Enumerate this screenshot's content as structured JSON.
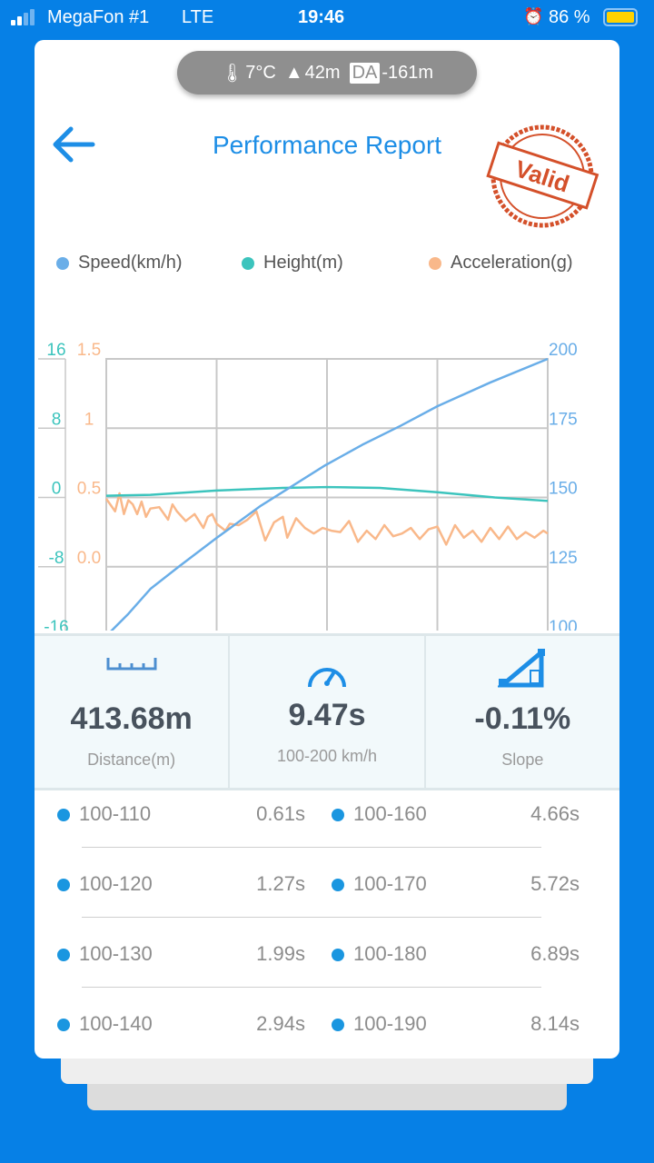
{
  "status_bar": {
    "carrier": "MegaFon #1",
    "network": "LTE",
    "time": "19:46",
    "battery": "86 %"
  },
  "conditions": {
    "temperature": "7°C",
    "altitude": "42m",
    "da_label": "DA",
    "density_altitude": "-161m"
  },
  "header": {
    "title": "Performance Report",
    "stamp": "Valid"
  },
  "colors": {
    "speed": "#6aaee8",
    "height": "#3cc4bd",
    "acceleration": "#f9b88a",
    "accent": "#1d8ee6"
  },
  "chart_data": {
    "type": "line",
    "legend": [
      "Speed(km/h)",
      "Height(m)",
      "Acceleration(g)"
    ],
    "axes": {
      "height": {
        "ticks": [
          "16",
          "8",
          "0",
          "-8",
          "-16"
        ],
        "range": [
          -16,
          16
        ]
      },
      "acceleration": {
        "ticks": [
          "1.5",
          "1",
          "0.5",
          "0.0"
        ],
        "range": [
          -0.5,
          1.5
        ]
      },
      "speed": {
        "ticks": [
          "200",
          "175",
          "150",
          "125",
          "100"
        ],
        "range": [
          100,
          200
        ]
      }
    },
    "x_range": [
      0,
      100
    ],
    "series": [
      {
        "name": "Speed(km/h)",
        "x": [
          0,
          5,
          10,
          16.4,
          25,
          35,
          49.6,
          58,
          66.6,
          75,
          87,
          100
        ],
        "values": [
          100,
          108,
          117,
          125,
          135.4,
          147,
          161.6,
          169,
          175.8,
          182.9,
          191.5,
          200
        ]
      },
      {
        "name": "Height(m)",
        "x": [
          0,
          10,
          25,
          40,
          50,
          62,
          75,
          88,
          100
        ],
        "values": [
          0.2,
          0.3,
          0.8,
          1.1,
          1.2,
          1.1,
          0.6,
          0,
          -0.4
        ]
      },
      {
        "name": "Acceleration(g)",
        "x": [
          0,
          2,
          3,
          4,
          5,
          6,
          7,
          8,
          9,
          10,
          12,
          14,
          15,
          16,
          18,
          20,
          22,
          23,
          24,
          25,
          27,
          28,
          30,
          32,
          34,
          36,
          38,
          40,
          41,
          43,
          45,
          47,
          49,
          51,
          53,
          55,
          57,
          59,
          61,
          63,
          65,
          67,
          69,
          71,
          73,
          75,
          77,
          79,
          81,
          83,
          85,
          87,
          89,
          91,
          93,
          95,
          97,
          99,
          100
        ],
        "values": [
          0.49,
          0.4,
          0.53,
          0.38,
          0.48,
          0.45,
          0.38,
          0.47,
          0.36,
          0.42,
          0.43,
          0.34,
          0.45,
          0.4,
          0.33,
          0.38,
          0.28,
          0.36,
          0.38,
          0.31,
          0.26,
          0.31,
          0.3,
          0.34,
          0.4,
          0.19,
          0.32,
          0.36,
          0.21,
          0.35,
          0.28,
          0.24,
          0.28,
          0.26,
          0.25,
          0.33,
          0.18,
          0.26,
          0.2,
          0.3,
          0.22,
          0.24,
          0.28,
          0.2,
          0.27,
          0.29,
          0.16,
          0.3,
          0.21,
          0.26,
          0.18,
          0.28,
          0.2,
          0.29,
          0.2,
          0.25,
          0.21,
          0.26,
          0.24
        ]
      }
    ]
  },
  "stats": [
    {
      "value": "413.68m",
      "label": "Distance(m)",
      "icon": "ruler-icon"
    },
    {
      "value": "9.47s",
      "label": "100-200 km/h",
      "icon": "speedometer-icon"
    },
    {
      "value": "-0.11%",
      "label": "Slope",
      "icon": "slope-icon"
    }
  ],
  "splits": [
    [
      {
        "range": "100-110",
        "time": "0.61s"
      },
      {
        "range": "100-160",
        "time": "4.66s"
      }
    ],
    [
      {
        "range": "100-120",
        "time": "1.27s"
      },
      {
        "range": "100-170",
        "time": "5.72s"
      }
    ],
    [
      {
        "range": "100-130",
        "time": "1.99s"
      },
      {
        "range": "100-180",
        "time": "6.89s"
      }
    ],
    [
      {
        "range": "100-140",
        "time": "2.94s"
      },
      {
        "range": "100-190",
        "time": "8.14s"
      }
    ]
  ]
}
